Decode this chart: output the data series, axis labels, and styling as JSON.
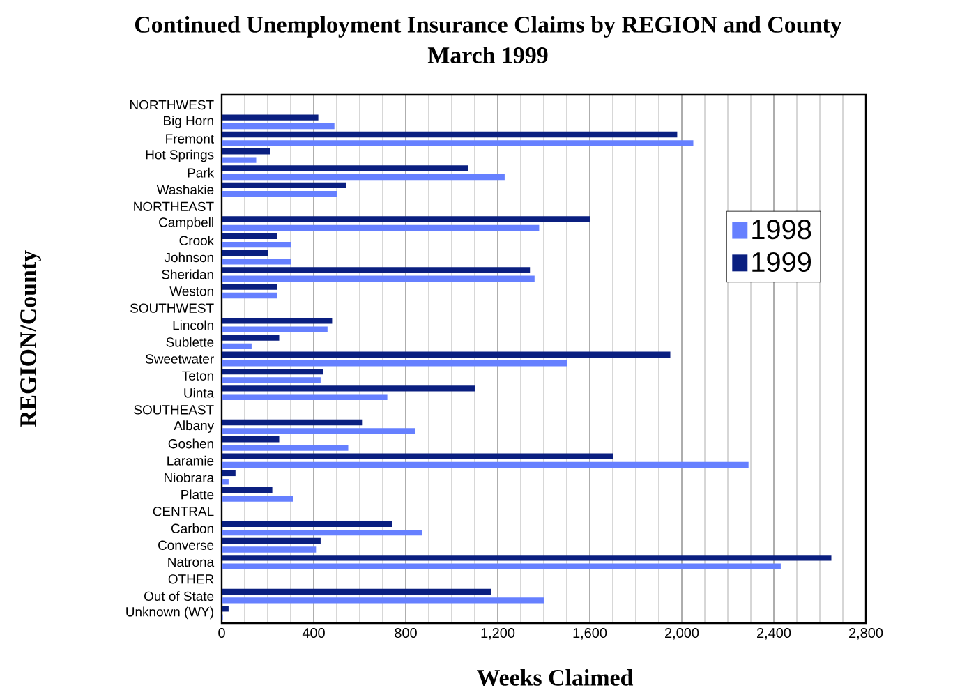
{
  "chart_data": {
    "type": "bar",
    "orientation": "horizontal",
    "title": "Continued Unemployment Insurance Claims by REGION and County",
    "subtitle": "March 1999",
    "xlabel": "Weeks Claimed",
    "ylabel": "REGION/County",
    "categories": [
      "NORTHWEST",
      "Big Horn",
      "Fremont",
      "Hot Springs",
      "Park",
      "Washakie",
      "NORTHEAST",
      "Campbell",
      "Crook",
      "Johnson",
      "Sheridan",
      "Weston",
      "SOUTHWEST",
      "Lincoln",
      "Sublette",
      "Sweetwater",
      "Teton",
      "Uinta",
      "SOUTHEAST",
      "Albany",
      "Goshen",
      "Laramie",
      "Niobrara",
      "Platte",
      "CENTRAL",
      "Carbon",
      "Converse",
      "Natrona",
      "OTHER",
      "Out of State",
      "Unknown (WY)"
    ],
    "series": [
      {
        "name": "1998",
        "color": "#6680ff",
        "values": [
          null,
          490,
          2050,
          150,
          1230,
          500,
          null,
          1380,
          300,
          300,
          1360,
          240,
          null,
          460,
          130,
          1500,
          430,
          720,
          null,
          840,
          550,
          2290,
          30,
          310,
          null,
          870,
          410,
          2430,
          null,
          1400,
          5
        ]
      },
      {
        "name": "1999",
        "color": "#0a1f80",
        "values": [
          null,
          420,
          1980,
          210,
          1070,
          540,
          null,
          1600,
          240,
          200,
          1340,
          240,
          null,
          480,
          250,
          1950,
          440,
          1100,
          null,
          610,
          250,
          1700,
          60,
          220,
          null,
          740,
          430,
          2650,
          null,
          1170,
          30
        ]
      }
    ],
    "xlim": [
      0,
      2800
    ],
    "xticks": [
      0,
      400,
      800,
      {
        "value": 1200,
        "label": "1,200"
      },
      {
        "value": 1600,
        "label": "1,600"
      },
      {
        "value": 2000,
        "label": "2,000"
      },
      {
        "value": 2400,
        "label": "2,400"
      },
      {
        "value": 2800,
        "label": "2,800"
      }
    ],
    "grid": "x",
    "legend": "right"
  }
}
